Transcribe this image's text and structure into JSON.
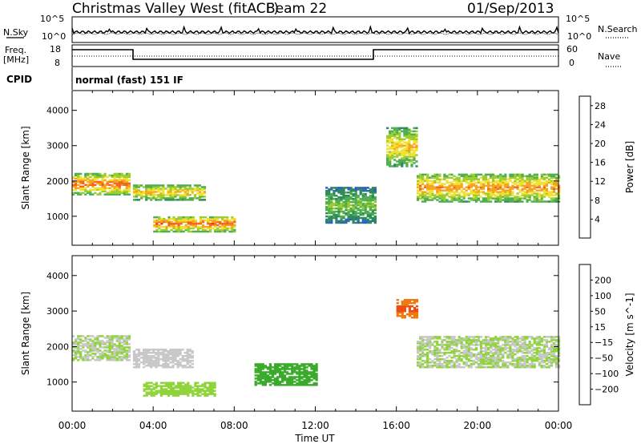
{
  "header": {
    "station": "Christmas Valley West (fitACF)",
    "beam": "Beam 22",
    "date": "01/Sep/2013"
  },
  "noise_panel": {
    "left_label": "N.Sky",
    "right_label": "N.Search",
    "left_ticks": [
      "10^5",
      "10^0"
    ],
    "right_ticks": [
      "10^5",
      "10^0"
    ]
  },
  "freq_panel": {
    "left_label_1": "Freq.",
    "left_label_2": "[MHz]",
    "right_label": "Nave",
    "left_ticks": [
      "18",
      "8"
    ],
    "right_ticks": [
      "60",
      "0"
    ]
  },
  "cpid": {
    "label": "CPID",
    "text": "normal (fast) 151 IF"
  },
  "colors": {
    "power_scale": [
      "#1f2be0",
      "#2f5fc8",
      "#2e8a5a",
      "#4fae4f",
      "#9ccd2f",
      "#f0e22f",
      "#f5a321",
      "#f0641c",
      "#e82818"
    ],
    "velocity_scale": [
      "#2020c0",
      "#3050a8",
      "#1f7a3a",
      "#3aaa2a",
      "#8fd43a",
      "#c8c8c8",
      "#c8c8c8",
      "#f0a21a",
      "#f07a10",
      "#f04a10",
      "#e01010"
    ]
  },
  "chart_data": [
    {
      "type": "heatmap",
      "title": "",
      "xlabel": "Time UT",
      "ylabel": "Slant Range [km]",
      "xlim": [
        "00:00",
        "24:00"
      ],
      "ylim": [
        180,
        4560
      ],
      "x_ticks": [
        "00:00",
        "04:00",
        "08:00",
        "12:00",
        "16:00",
        "20:00",
        "00:00"
      ],
      "y_ticks": [
        1000,
        2000,
        3000,
        4000
      ],
      "colorbar": {
        "label": "Power [dB]",
        "ticks": [
          4,
          8,
          12,
          16,
          20,
          24,
          28
        ],
        "range": [
          0,
          30
        ]
      },
      "regions": [
        {
          "t_start": 0.0,
          "t_end": 2.8,
          "range_km": [
            1600,
            2200
          ],
          "value": 22
        },
        {
          "t_start": 3.0,
          "t_end": 6.5,
          "range_km": [
            1450,
            1900
          ],
          "value": 18
        },
        {
          "t_start": 4.0,
          "t_end": 8.0,
          "range_km": [
            550,
            1000
          ],
          "value": 22
        },
        {
          "t_start": 12.5,
          "t_end": 15.0,
          "range_km": [
            800,
            1800
          ],
          "value": 12
        },
        {
          "t_start": 15.5,
          "t_end": 17.0,
          "range_km": [
            2400,
            3500
          ],
          "value": 18
        },
        {
          "t_start": 17.0,
          "t_end": 24.0,
          "range_km": [
            1400,
            2200
          ],
          "value": 20
        }
      ]
    },
    {
      "type": "heatmap",
      "title": "",
      "xlabel": "Time UT",
      "ylabel": "Slant Range [km]",
      "xlim": [
        "00:00",
        "24:00"
      ],
      "ylim": [
        180,
        4560
      ],
      "x_ticks": [
        "00:00",
        "04:00",
        "08:00",
        "12:00",
        "16:00",
        "20:00",
        "00:00"
      ],
      "y_ticks": [
        1000,
        2000,
        3000,
        4000
      ],
      "colorbar": {
        "label": "Velocity [m s^-1]",
        "ticks": [
          200,
          100,
          50,
          15,
          -15,
          -50,
          -100,
          -200
        ],
        "range": [
          -250,
          250
        ]
      },
      "regions": [
        {
          "t_start": 0.0,
          "t_end": 2.8,
          "range_km": [
            1600,
            2300
          ],
          "value": 0
        },
        {
          "t_start": 3.0,
          "t_end": 6.0,
          "range_km": [
            1400,
            1900
          ],
          "value": -30
        },
        {
          "t_start": 3.5,
          "t_end": 7.0,
          "range_km": [
            600,
            1000
          ],
          "value": 10
        },
        {
          "t_start": 9.0,
          "t_end": 12.0,
          "range_km": [
            900,
            1500
          ],
          "value": 40
        },
        {
          "t_start": 16.0,
          "t_end": 17.0,
          "range_km": [
            2800,
            3300
          ],
          "value": -220
        },
        {
          "t_start": 17.0,
          "t_end": 24.0,
          "range_km": [
            1400,
            2300
          ],
          "value": 0
        }
      ]
    }
  ]
}
